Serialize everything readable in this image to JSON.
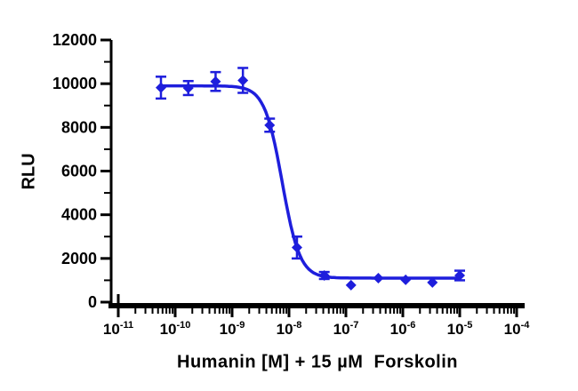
{
  "chart_data": {
    "type": "scatter",
    "title": "",
    "xlabel": "Humanin [M] + 15 µM  Forskolin",
    "ylabel": "RLU",
    "x_scale": "log10",
    "x_major_exponents": [
      -11,
      -10,
      -9,
      -8,
      -7,
      -6,
      -5,
      -4
    ],
    "x_minor_mantissas": [
      2,
      3,
      4,
      5,
      6,
      7,
      8,
      9
    ],
    "ylim": [
      0,
      12000
    ],
    "y_major_step": 2000,
    "y_minor_step": 1000,
    "grid": false,
    "legend": "none",
    "series": [
      {
        "name": "Humanin + 15 uM Forskolin",
        "color": "#1E1EDC",
        "marker": "diamond",
        "log_x": [
          -10.25,
          -9.77,
          -9.29,
          -8.81,
          -8.34,
          -7.86,
          -7.38,
          -6.91,
          -6.43,
          -5.95,
          -5.48,
          -5.0
        ],
        "y": [
          9820,
          9800,
          10100,
          10150,
          8100,
          2500,
          1220,
          780,
          1100,
          1020,
          900,
          1220
        ],
        "y_err": [
          500,
          320,
          430,
          570,
          300,
          500,
          160,
          0,
          0,
          0,
          0,
          220
        ]
      }
    ],
    "fit": {
      "model": "4PL-inhibition",
      "top": 9900,
      "bottom": 1100,
      "log_ic50": -8.12,
      "hill_slope": 2.8
    }
  }
}
